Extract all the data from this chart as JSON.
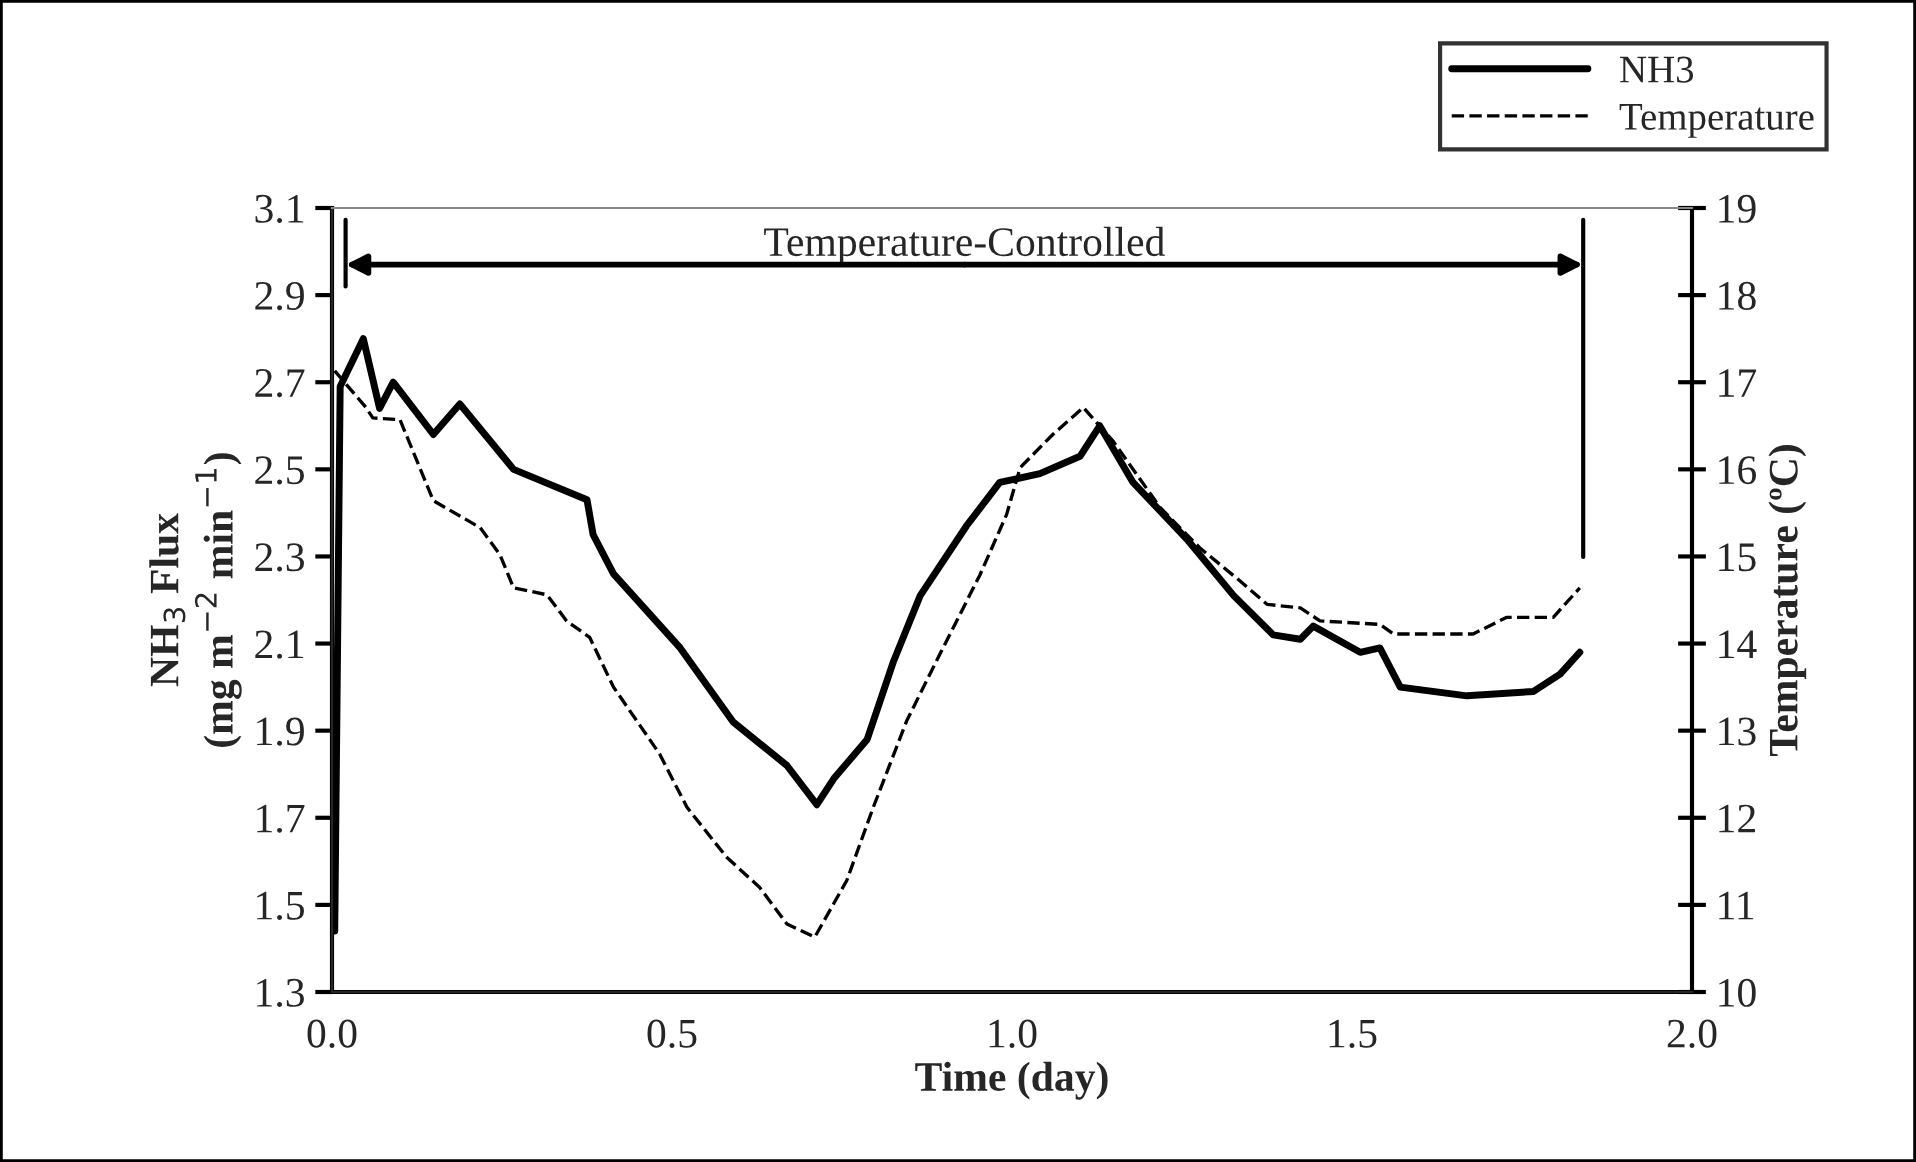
{
  "chart_data": {
    "type": "line",
    "xlabel": "Time (day)",
    "ylabel": "NH$_{3}$ Flux\n(mg m$^{−2}$ min$^{−1}$)",
    "y2label": "Temperature (ºC)",
    "xlim": [
      0,
      2
    ],
    "xticks": [
      {
        "value": 0,
        "label": "0.0"
      },
      0.5,
      {
        "value": 1,
        "label": "1.0"
      },
      1.5,
      {
        "value": 2,
        "label": "2.0"
      }
    ],
    "ylim": [
      1.3,
      3.1
    ],
    "yticks": [
      1.3,
      1.5,
      1.7,
      1.9,
      2.1,
      2.3,
      2.5,
      2.7,
      2.9,
      3.1
    ],
    "y2lim": [
      10,
      19
    ],
    "y2ticks": [
      10,
      11,
      12,
      13,
      14,
      15,
      16,
      17,
      18,
      19
    ],
    "legend": "top right",
    "grid": false,
    "annotations": [
      {
        "text": "Temperature-Controlled",
        "x": 1.84,
        "y": 2.97
      }
    ],
    "ref_lines": [
      {
        "axis": "x",
        "value": 0.02
      },
      {
        "axis": "x",
        "value": 1.84
      }
    ],
    "series": [
      {
        "name": "NH3",
        "color": "#000000",
        "line_style": "solid",
        "x": [
          0.004,
          0.012,
          0.046,
          0.07,
          0.09,
          0.149,
          0.188,
          0.267,
          0.375,
          0.384,
          0.414,
          0.512,
          0.59,
          0.669,
          0.713,
          0.738,
          0.787,
          0.826,
          0.865,
          0.933,
          0.982,
          1.041,
          1.1,
          1.129,
          1.178,
          1.257,
          1.326,
          1.384,
          1.424,
          1.443,
          1.512,
          1.541,
          1.571,
          1.669,
          1.767,
          1.806,
          1.835
        ],
        "values": [
          1.44,
          2.69,
          2.8,
          2.64,
          2.7,
          2.58,
          2.65,
          2.5,
          2.43,
          2.35,
          2.26,
          2.09,
          1.92,
          1.82,
          1.73,
          1.79,
          1.88,
          2.06,
          2.21,
          2.37,
          2.47,
          2.49,
          2.53,
          2.6,
          2.47,
          2.34,
          2.21,
          2.12,
          2.11,
          2.14,
          2.08,
          2.09,
          2.0,
          1.98,
          1.99,
          2.03,
          2.08
        ]
      },
      {
        "name": "Temperature",
        "color": "#000000",
        "line_style": "dashed",
        "axis": "y2",
        "x": [
          0.004,
          0.05,
          0.06,
          0.1,
          0.149,
          0.218,
          0.247,
          0.267,
          0.316,
          0.345,
          0.379,
          0.414,
          0.482,
          0.522,
          0.58,
          0.629,
          0.669,
          0.71,
          0.757,
          0.796,
          0.845,
          0.894,
          0.953,
          0.992,
          1.012,
          1.06,
          1.105,
          1.149,
          1.218,
          1.276,
          1.335,
          1.375,
          1.424,
          1.453,
          1.541,
          1.561,
          1.678,
          1.727,
          1.796,
          1.835
        ],
        "values": [
          17.13,
          16.71,
          16.59,
          16.57,
          15.64,
          15.33,
          15.02,
          14.64,
          14.56,
          14.26,
          14.07,
          13.5,
          12.73,
          12.12,
          11.55,
          11.2,
          10.78,
          10.63,
          11.28,
          12.12,
          13.11,
          13.88,
          14.79,
          15.48,
          16.02,
          16.4,
          16.71,
          16.32,
          15.56,
          15.1,
          14.72,
          14.45,
          14.41,
          14.26,
          14.22,
          14.11,
          14.11,
          14.3,
          14.3,
          14.64
        ]
      }
    ]
  }
}
